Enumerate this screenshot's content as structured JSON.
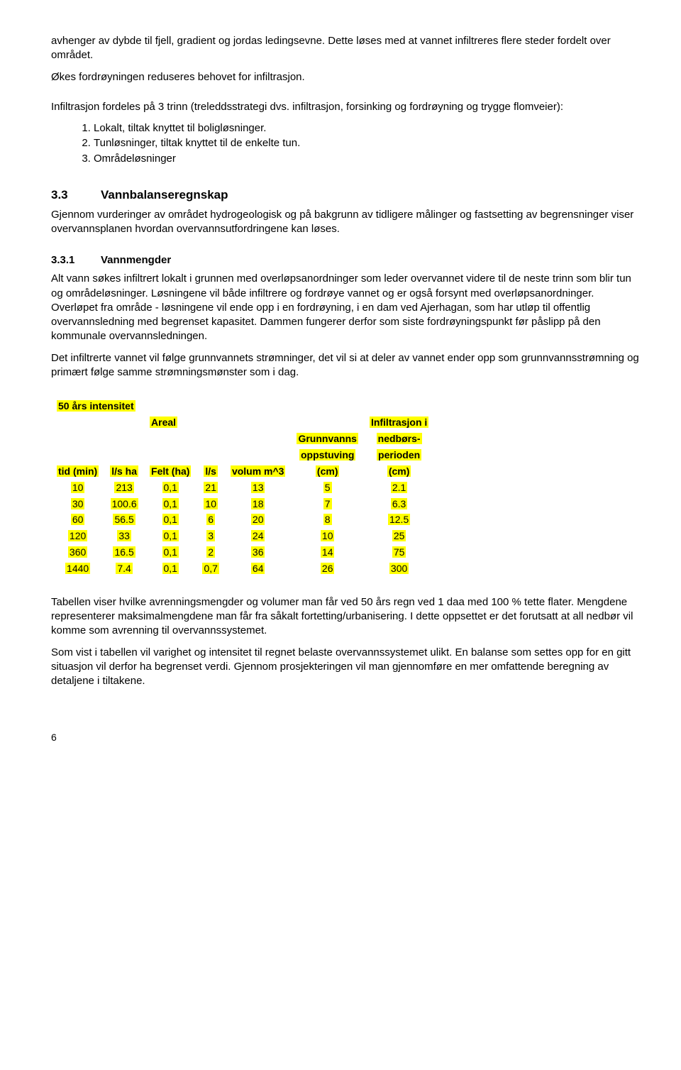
{
  "intro": {
    "p1": "avhenger av dybde til fjell, gradient og jordas ledingsevne.  Dette løses med at vannet infiltreres flere steder fordelt over området.",
    "p2": "Økes fordrøyningen reduseres behovet for infiltrasjon.",
    "p3": "Infiltrasjon fordeles på 3 trinn (treleddsstrategi dvs. infiltrasjon, forsinking og fordrøyning og trygge flomveier):",
    "list": [
      "Lokalt, tiltak knyttet til boligløsninger.",
      "Tunløsninger, tiltak knyttet til de enkelte tun.",
      "Områdeløsninger"
    ]
  },
  "sec33": {
    "num": "3.3",
    "title": "Vannbalanseregnskap",
    "p1": "Gjennom vurderinger av området hydrogeologisk og på bakgrunn av tidligere målinger og fastsetting av begrensninger viser overvannsplanen hvordan overvannsutfordringene kan løses."
  },
  "sec331": {
    "num": "3.3.1",
    "title": "Vannmengder",
    "p1": "Alt vann søkes infiltrert lokalt i grunnen med overløpsanordninger som leder overvannet videre til de neste trinn som blir tun og områdeløsninger. Løsningene vil både infiltrere og fordrøye vannet og er også forsynt med overløpsanordninger. Overløpet fra område - løsningene vil ende opp i en fordrøyning, i en dam ved Ajerhagan, som har utløp til offentlig overvannsledning med begrenset kapasitet. Dammen fungerer derfor som siste fordrøyningspunkt før påslipp på den kommunale overvannsledningen.",
    "p2": "Det infiltrerte vannet vil følge grunnvannets strømninger, det vil si at deler av vannet ender opp som grunnvannsstrømning og primært følge samme strømningsmønster som i dag."
  },
  "table": {
    "title": "50 års intensitet",
    "headers": {
      "areal": "Areal",
      "tid": "tid (min)",
      "lsha": "l/s ha",
      "felt": "Felt (ha)",
      "ls": "l/s",
      "vol": "volum m^3",
      "grunn": "Grunnvanns\noppstuving\n(cm)",
      "infil": "Infiltrasjon i\nnedbørs-\nperioden\n(cm)"
    },
    "rows": [
      {
        "tid": "10",
        "lsha": "213",
        "felt": "0,1",
        "ls": "21",
        "vol": "13",
        "grunn": "5",
        "infil": "2.1"
      },
      {
        "tid": "30",
        "lsha": "100.6",
        "felt": "0,1",
        "ls": "10",
        "vol": "18",
        "grunn": "7",
        "infil": "6.3"
      },
      {
        "tid": "60",
        "lsha": "56.5",
        "felt": "0,1",
        "ls": "6",
        "vol": "20",
        "grunn": "8",
        "infil": "12.5"
      },
      {
        "tid": "120",
        "lsha": "33",
        "felt": "0,1",
        "ls": "3",
        "vol": "24",
        "grunn": "10",
        "infil": "25"
      },
      {
        "tid": "360",
        "lsha": "16.5",
        "felt": "0,1",
        "ls": "2",
        "vol": "36",
        "grunn": "14",
        "infil": "75"
      },
      {
        "tid": "1440",
        "lsha": "7.4",
        "felt": "0,1",
        "ls": "0,7",
        "vol": "64",
        "grunn": "26",
        "infil": "300"
      }
    ]
  },
  "after": {
    "p1": "Tabellen viser hvilke avrenningsmengder og volumer man får ved 50 års regn ved 1 daa med 100 % tette flater. Mengdene representerer maksimalmengdene man får fra såkalt fortetting/urbanisering.  I dette oppsettet er det forutsatt at all nedbør vil komme som avrenning til overvannssystemet.",
    "p2": "Som vist i tabellen vil varighet og intensitet til regnet belaste overvannssystemet ulikt. En balanse som settes opp for en gitt situasjon vil derfor ha begrenset verdi. Gjennom prosjekteringen vil man gjennomføre en mer omfattende beregning av detaljene i tiltakene."
  },
  "page": "6"
}
